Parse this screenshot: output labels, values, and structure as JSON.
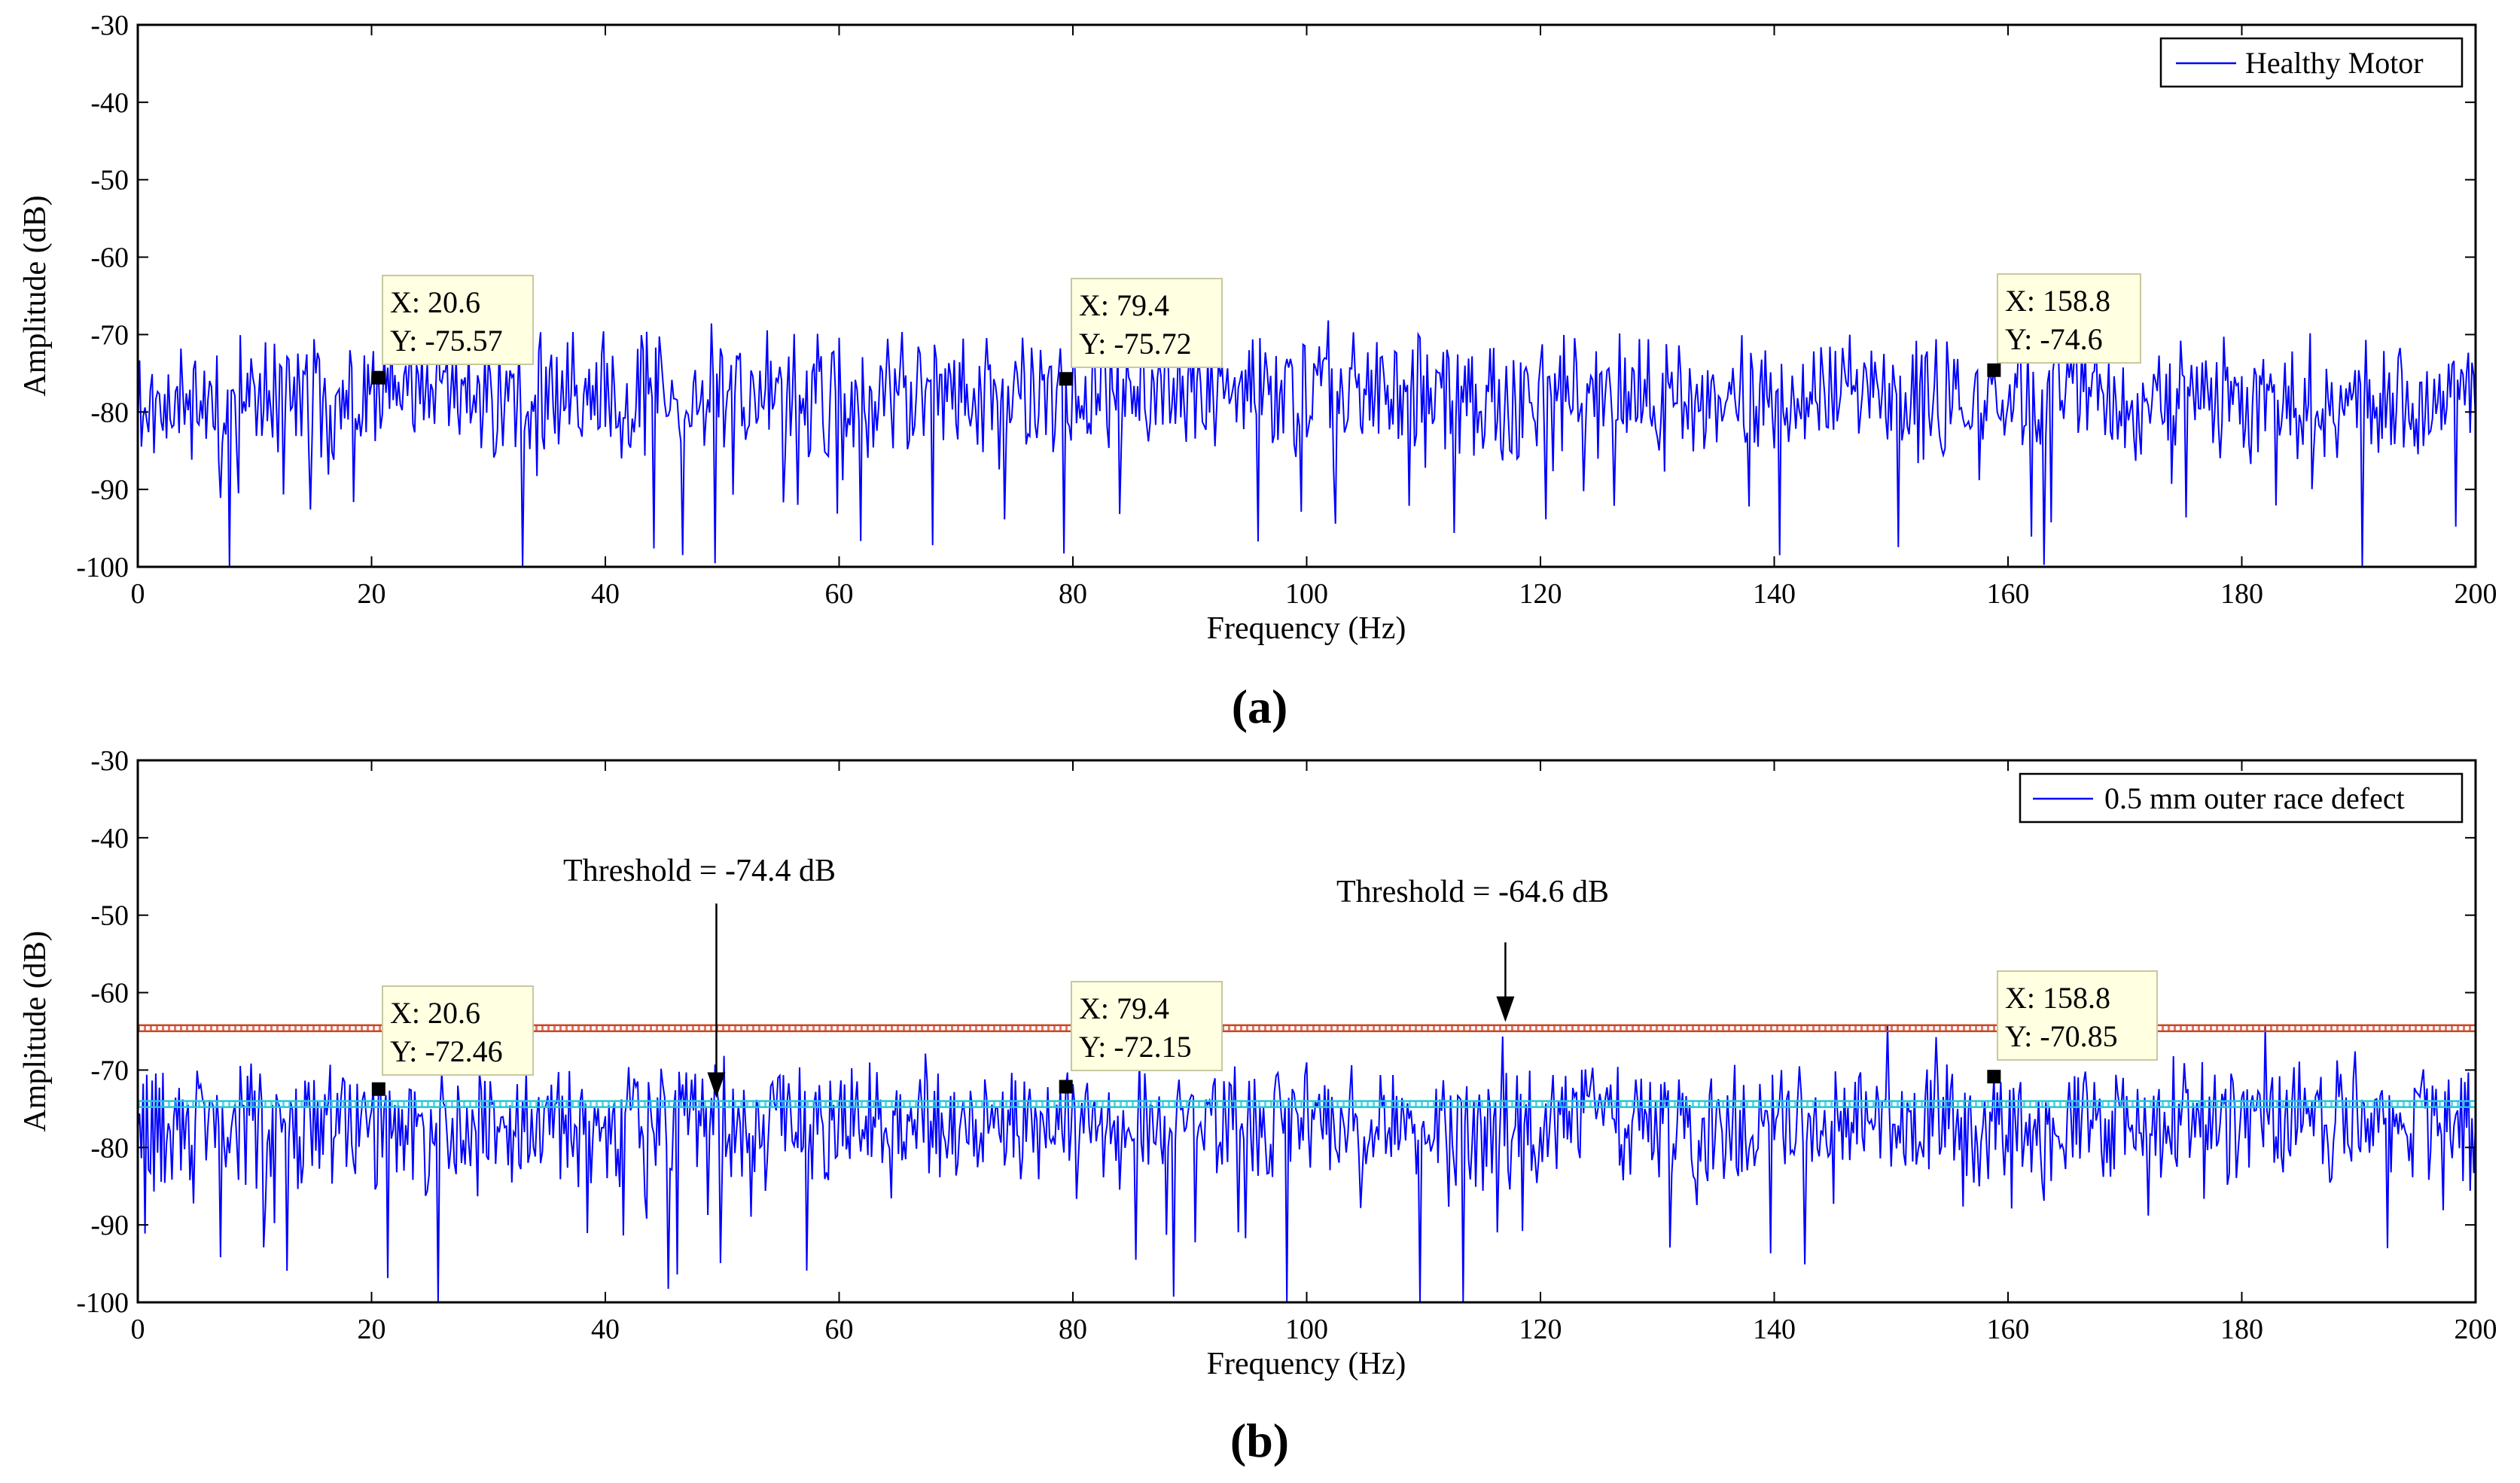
{
  "chart_data": [
    {
      "type": "line",
      "panel_label": "(a)",
      "xlabel": "Frequency (Hz)",
      "ylabel": "Amplitude (dB)",
      "xlim": [
        0,
        200
      ],
      "ylim": [
        -100,
        -30
      ],
      "xticks": [
        "0",
        "20",
        "40",
        "60",
        "80",
        "100",
        "120",
        "140",
        "160",
        "180",
        "200"
      ],
      "yticks": [
        "-30",
        "-40",
        "-50",
        "-60",
        "-70",
        "-80",
        "-90",
        "-100"
      ],
      "legend": {
        "label": "Healthy Motor",
        "placement": "top-right"
      },
      "series": [
        {
          "name": "Healthy Motor",
          "color": "#0000ff",
          "kind": "noise-spectrum",
          "mean": -78,
          "seed": 11
        }
      ],
      "datatips": [
        {
          "x": 20.6,
          "y": -75.57,
          "x_label": "X: 20.6",
          "y_label": "Y: -75.57"
        },
        {
          "x": 79.4,
          "y": -75.72,
          "x_label": "X: 79.4",
          "y_label": "Y: -75.72"
        },
        {
          "x": 158.8,
          "y": -74.6,
          "x_label": "X: 158.8",
          "y_label": "Y: -74.6"
        }
      ],
      "thresholds": [],
      "annotations": []
    },
    {
      "type": "line",
      "panel_label": "(b)",
      "xlabel": "Frequency (Hz)",
      "ylabel": "Amplitude (dB)",
      "xlim": [
        0,
        200
      ],
      "ylim": [
        -100,
        -30
      ],
      "xticks": [
        "0",
        "20",
        "40",
        "60",
        "80",
        "100",
        "120",
        "140",
        "160",
        "180",
        "200"
      ],
      "yticks": [
        "-30",
        "-40",
        "-50",
        "-60",
        "-70",
        "-80",
        "-90",
        "-100"
      ],
      "legend": {
        "label": "0.5 mm outer race defect",
        "placement": "top-right"
      },
      "series": [
        {
          "name": "0.5 mm outer race defect",
          "color": "#0000ff",
          "kind": "noise-spectrum",
          "mean": -77,
          "seed": 29
        }
      ],
      "datatips": [
        {
          "x": 20.6,
          "y": -72.46,
          "x_label": "X: 20.6",
          "y_label": "Y: -72.46"
        },
        {
          "x": 79.4,
          "y": -72.15,
          "x_label": "X: 79.4",
          "y_label": "Y: -72.15"
        },
        {
          "x": 158.8,
          "y": -70.85,
          "x_label": "X: 158.8",
          "y_label": "Y: -70.85"
        }
      ],
      "thresholds": [
        {
          "y": -64.6,
          "color": "#cc4422"
        },
        {
          "y": -74.4,
          "color": "#22c8d8"
        }
      ],
      "annotations": [
        {
          "text": "Threshold = -74.4 dB",
          "arrow_x": 49.5,
          "arrow_y_top": -48.5,
          "arrow_y_bottom": -73.6
        },
        {
          "text": "Threshold = -64.6 dB",
          "arrow_x": 117,
          "arrow_y_top": -53.5,
          "arrow_y_bottom": -63.8
        }
      ]
    }
  ]
}
